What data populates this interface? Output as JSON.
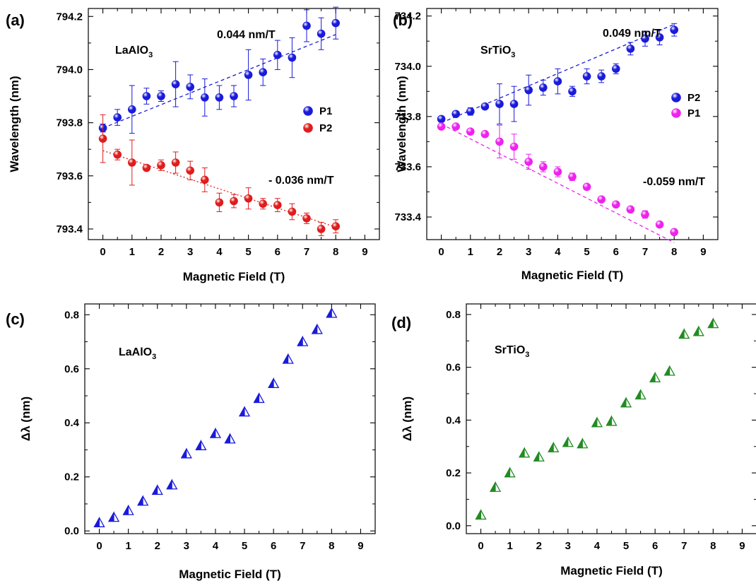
{
  "chart_data": [
    {
      "panel": "(a)",
      "type": "scatter",
      "xlabel": "Magnetic Field (T)",
      "ylabel": "Wavelength (nm)",
      "xlim": [
        -0.5,
        9.5
      ],
      "ylim": [
        793.36,
        794.23
      ],
      "xticks": [
        0,
        1,
        2,
        3,
        4,
        5,
        6,
        7,
        8,
        9
      ],
      "yticks": [
        793.4,
        793.6,
        793.8,
        794.0,
        794.2
      ],
      "ytick_decimals": 1,
      "grid": false,
      "legend_position": "middle-right",
      "annotations": [
        {
          "text": "LaAlO",
          "sub": "3",
          "kind": "sample"
        },
        {
          "text": "0.044 nm/T",
          "kind": "slope"
        },
        {
          "text": "- 0.036 nm/T",
          "kind": "slope"
        }
      ],
      "series": [
        {
          "name": "P1",
          "color": "#1a1adb",
          "marker": "sphere",
          "x": [
            0,
            0.5,
            1,
            1.5,
            2,
            2.5,
            3,
            3.5,
            4,
            4.5,
            5,
            5.5,
            6,
            6.5,
            7,
            7.5,
            8
          ],
          "y": [
            793.78,
            793.82,
            793.85,
            793.9,
            793.9,
            793.945,
            793.935,
            793.895,
            793.895,
            793.9,
            793.98,
            793.99,
            794.055,
            794.045,
            794.165,
            794.135,
            794.175
          ],
          "yerr": [
            0.015,
            0.03,
            0.09,
            0.03,
            0.02,
            0.085,
            0.045,
            0.07,
            0.045,
            0.04,
            0.095,
            0.05,
            0.055,
            0.075,
            0.06,
            0.06,
            0.06
          ],
          "fit": {
            "slope": 0.044,
            "intercept": 793.78,
            "style": "dashed"
          }
        },
        {
          "name": "P2",
          "color": "#e01c1c",
          "marker": "sphere",
          "x": [
            0,
            0.5,
            1,
            1.5,
            2,
            2.5,
            3,
            3.5,
            4,
            4.5,
            5,
            5.5,
            6,
            6.5,
            7,
            7.5,
            8
          ],
          "y": [
            793.74,
            793.68,
            793.65,
            793.63,
            793.64,
            793.65,
            793.62,
            793.585,
            793.5,
            793.505,
            793.515,
            793.495,
            793.49,
            793.465,
            793.44,
            793.4,
            793.41
          ],
          "yerr": [
            0.09,
            0.02,
            0.085,
            0.01,
            0.02,
            0.04,
            0.035,
            0.045,
            0.035,
            0.025,
            0.04,
            0.02,
            0.025,
            0.03,
            0.02,
            0.025,
            0.025
          ],
          "fit": {
            "slope": -0.036,
            "intercept": 793.695,
            "style": "dotted"
          }
        }
      ]
    },
    {
      "panel": "(b)",
      "type": "scatter",
      "xlabel": "Magnetic Field (T)",
      "ylabel": "Wavelength (nm)",
      "xlim": [
        -0.5,
        9.5
      ],
      "ylim": [
        733.31,
        734.23
      ],
      "xticks": [
        0,
        1,
        2,
        3,
        4,
        5,
        6,
        7,
        8,
        9
      ],
      "yticks": [
        733.4,
        733.6,
        733.8,
        734.0,
        734.2
      ],
      "ytick_decimals": 1,
      "grid": false,
      "legend_position": "middle-right",
      "annotations": [
        {
          "text": "SrTiO",
          "sub": "3",
          "kind": "sample"
        },
        {
          "text": "0.049 nm/T",
          "kind": "slope"
        },
        {
          "text": "-0.059 nm/T",
          "kind": "slope"
        }
      ],
      "series": [
        {
          "name": "P2",
          "color": "#1a1adb",
          "marker": "sphere",
          "x": [
            0,
            0.5,
            1,
            1.5,
            2,
            2.5,
            3,
            3.5,
            4,
            4.5,
            5,
            5.5,
            6,
            6.5,
            7,
            7.5,
            8
          ],
          "y": [
            733.79,
            733.81,
            733.82,
            733.84,
            733.85,
            733.85,
            733.905,
            733.915,
            733.94,
            733.9,
            733.96,
            733.96,
            733.99,
            734.07,
            734.11,
            734.115,
            734.145
          ],
          "yerr": [
            0.01,
            0.01,
            0.015,
            0.01,
            0.08,
            0.07,
            0.06,
            0.03,
            0.05,
            0.02,
            0.03,
            0.025,
            0.02,
            0.025,
            0.03,
            0.03,
            0.025
          ],
          "fit": {
            "slope": 0.049,
            "intercept": 733.775,
            "style": "dashed"
          }
        },
        {
          "name": "P1",
          "color": "#ee22ee",
          "marker": "sphere",
          "x": [
            0,
            0.5,
            1,
            1.5,
            2,
            2.5,
            3,
            3.5,
            4,
            4.5,
            5,
            5.5,
            6,
            6.5,
            7,
            7.5,
            8
          ],
          "y": [
            733.76,
            733.76,
            733.74,
            733.73,
            733.7,
            733.68,
            733.62,
            733.6,
            733.58,
            733.56,
            733.52,
            733.47,
            733.45,
            733.43,
            733.41,
            733.37,
            733.34
          ],
          "yerr": [
            0.005,
            0.005,
            0.01,
            0.01,
            0.065,
            0.05,
            0.03,
            0.02,
            0.02,
            0.015,
            0.01,
            0.01,
            0.01,
            0.01,
            0.015,
            0.01,
            0.01
          ],
          "fit": {
            "slope": -0.059,
            "intercept": 733.77,
            "style": "dashed"
          }
        }
      ]
    },
    {
      "panel": "(c)",
      "type": "scatter",
      "xlabel": "Magnetic Field (T)",
      "ylabel": "Δλ (nm)",
      "xlim": [
        -0.5,
        9.5
      ],
      "ylim": [
        -0.01,
        0.84
      ],
      "xticks": [
        0,
        1,
        2,
        3,
        4,
        5,
        6,
        7,
        8,
        9
      ],
      "yticks": [
        0.0,
        0.2,
        0.4,
        0.6,
        0.8
      ],
      "ytick_decimals": 1,
      "grid": false,
      "annotations": [
        {
          "text": "LaAlO",
          "sub": "3",
          "kind": "sample"
        }
      ],
      "series": [
        {
          "color": "#1a1adb",
          "marker": "half-triangle",
          "x": [
            0,
            0.5,
            1,
            1.5,
            2,
            2.5,
            3,
            3.5,
            4,
            4.5,
            5,
            5.5,
            6,
            6.5,
            7,
            7.5,
            8
          ],
          "y": [
            0.03,
            0.05,
            0.075,
            0.11,
            0.15,
            0.17,
            0.285,
            0.315,
            0.36,
            0.34,
            0.44,
            0.49,
            0.545,
            0.635,
            0.7,
            0.745,
            0.805
          ]
        }
      ]
    },
    {
      "panel": "(d)",
      "type": "scatter",
      "xlabel": "Magnetic Field (T)",
      "ylabel": "Δλ (nm)",
      "xlim": [
        -0.5,
        9.5
      ],
      "ylim": [
        -0.03,
        0.84
      ],
      "xticks": [
        0,
        1,
        2,
        3,
        4,
        5,
        6,
        7,
        8,
        9
      ],
      "yticks": [
        0.0,
        0.2,
        0.4,
        0.6,
        0.8
      ],
      "ytick_decimals": 1,
      "grid": false,
      "annotations": [
        {
          "text": "SrTiO",
          "sub": "3",
          "kind": "sample"
        }
      ],
      "series": [
        {
          "color": "#228b22",
          "marker": "half-triangle",
          "x": [
            0,
            0.5,
            1,
            1.5,
            2,
            2.5,
            3,
            3.5,
            4,
            4.5,
            5,
            5.5,
            6,
            6.5,
            7,
            7.5,
            8
          ],
          "y": [
            0.04,
            0.145,
            0.2,
            0.275,
            0.26,
            0.295,
            0.315,
            0.31,
            0.39,
            0.395,
            0.465,
            0.495,
            0.56,
            0.585,
            0.725,
            0.735,
            0.765
          ]
        }
      ]
    }
  ]
}
